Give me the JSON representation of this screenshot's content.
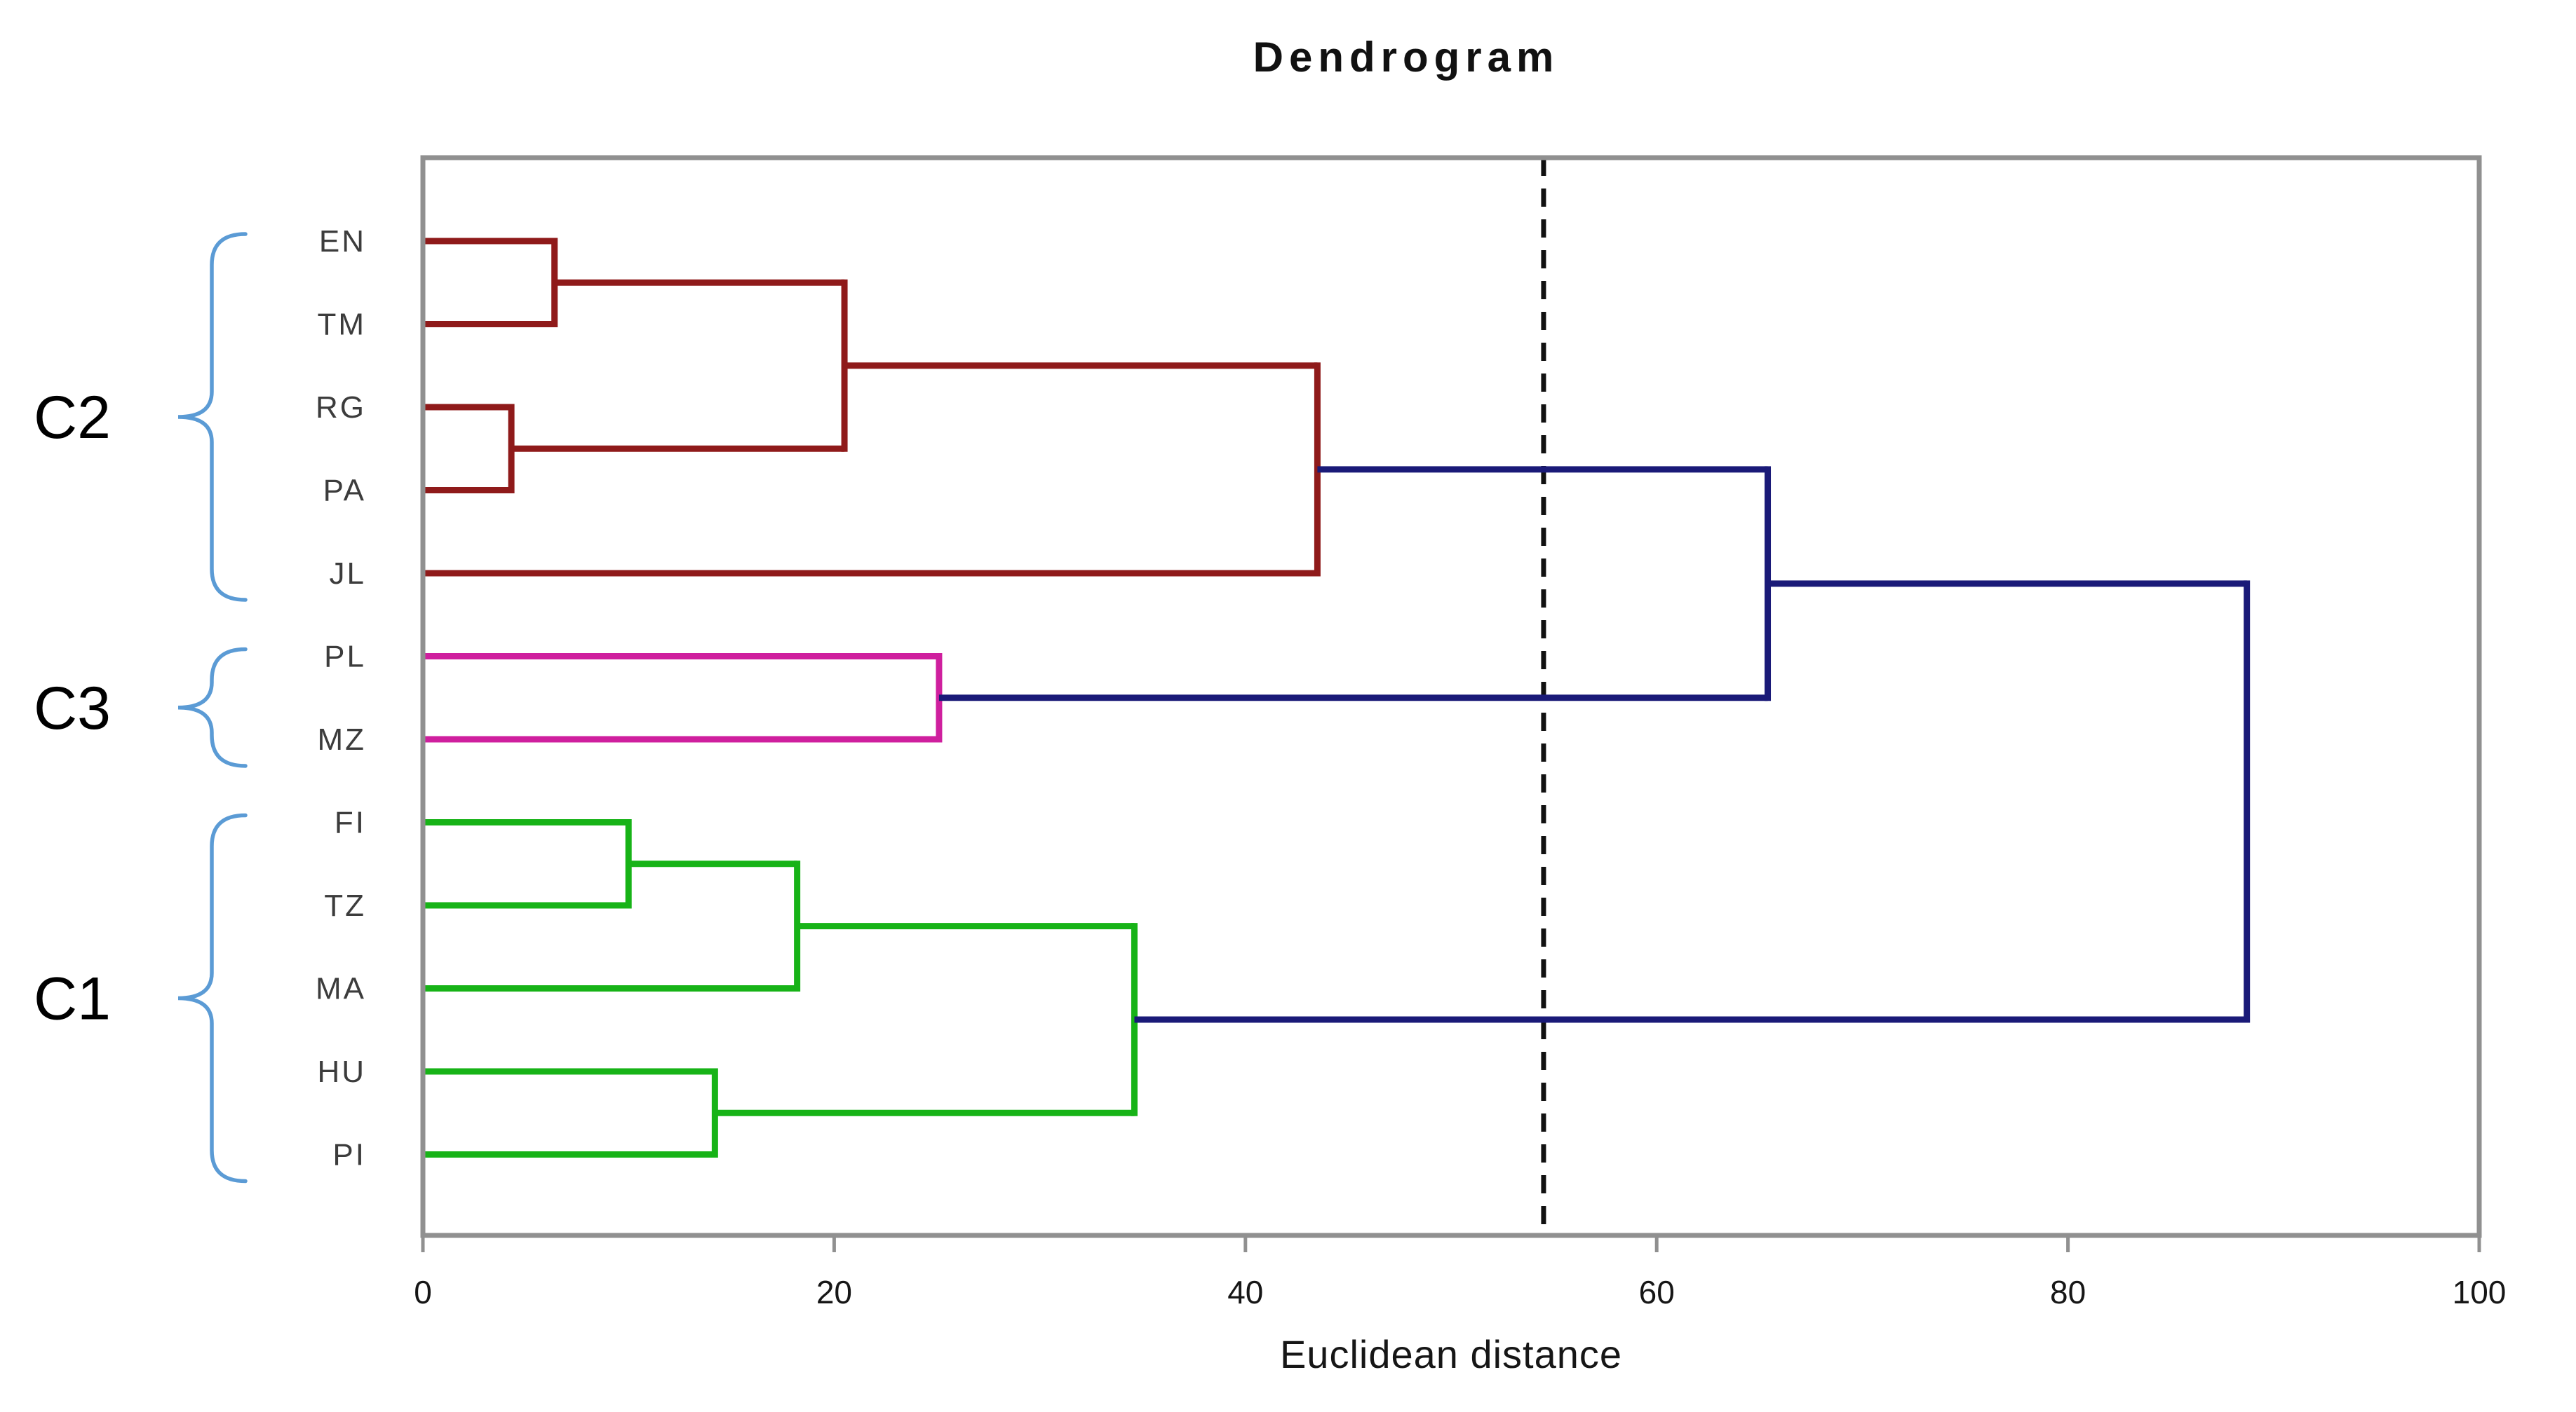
{
  "colors": {
    "c1": "#17B317",
    "c2": "#8F1A1A",
    "c3": "#CF1F9E",
    "link": "#1A1A78",
    "brace": "#5B9BD5",
    "frame": "#909090",
    "threshold": "#111111"
  },
  "chart_data": {
    "type": "dendrogram",
    "title": "Dendrogram",
    "xlabel": "Euclidean distance",
    "xlim": [
      0,
      100
    ],
    "x_ticks": [
      0,
      20,
      40,
      60,
      80,
      100
    ],
    "grid": false,
    "orientation": "horizontal-left-root-right",
    "leaves": [
      "EN",
      "TM",
      "RG",
      "PA",
      "JL",
      "PL",
      "MZ",
      "FI",
      "TZ",
      "MA",
      "HU",
      "PI"
    ],
    "threshold_line": 54.5,
    "merges": [
      {
        "id": "n1",
        "children": [
          "EN",
          "TM"
        ],
        "distance": 6.4,
        "color": "c2"
      },
      {
        "id": "n2",
        "children": [
          "RG",
          "PA"
        ],
        "distance": 4.3,
        "color": "c2"
      },
      {
        "id": "n3",
        "children": [
          "n1",
          "n2"
        ],
        "distance": 20.5,
        "color": "c2"
      },
      {
        "id": "n4",
        "children": [
          "n3",
          "JL"
        ],
        "distance": 43.5,
        "color": "c2"
      },
      {
        "id": "n5",
        "children": [
          "PL",
          "MZ"
        ],
        "distance": 25.1,
        "color": "c3"
      },
      {
        "id": "n6",
        "children": [
          "FI",
          "TZ"
        ],
        "distance": 10.0,
        "color": "c1"
      },
      {
        "id": "n7",
        "children": [
          "n6",
          "MA"
        ],
        "distance": 18.2,
        "color": "c1"
      },
      {
        "id": "n8",
        "children": [
          "HU",
          "PI"
        ],
        "distance": 14.2,
        "color": "c1"
      },
      {
        "id": "n9",
        "children": [
          "n7",
          "n8"
        ],
        "distance": 34.6,
        "color": "c1"
      },
      {
        "id": "n10",
        "children": [
          "n4",
          "n5"
        ],
        "distance": 65.4,
        "color": "link"
      },
      {
        "id": "n11",
        "children": [
          "n10",
          "n9"
        ],
        "distance": 88.7,
        "color": "link"
      }
    ],
    "cluster_brackets": [
      {
        "label": "C2",
        "from": "EN",
        "to": "JL",
        "leaves": [
          "EN",
          "TM",
          "RG",
          "PA",
          "JL"
        ]
      },
      {
        "label": "C3",
        "from": "PL",
        "to": "MZ",
        "leaves": [
          "PL",
          "MZ"
        ]
      },
      {
        "label": "C1",
        "from": "FI",
        "to": "PI",
        "leaves": [
          "FI",
          "TZ",
          "MA",
          "HU",
          "PI"
        ]
      }
    ]
  }
}
